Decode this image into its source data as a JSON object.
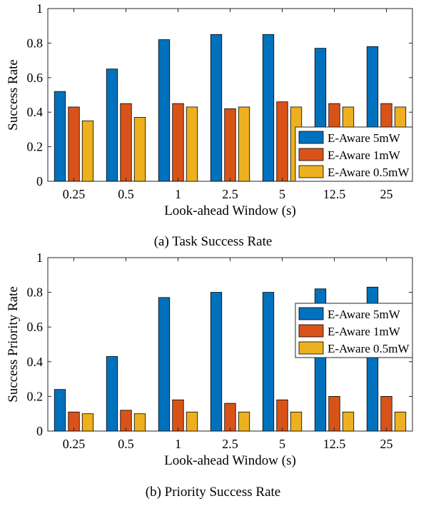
{
  "chart_data": [
    {
      "type": "bar",
      "caption": "(a) Task Success Rate",
      "xlabel": "Look-ahead Window (s)",
      "ylabel": "Success Rate",
      "categories": [
        "0.25",
        "0.5",
        "1",
        "2.5",
        "5",
        "12.5",
        "25"
      ],
      "yticks": [
        "0",
        "0.2",
        "0.4",
        "0.6",
        "0.8",
        "1"
      ],
      "ylim": [
        0,
        1
      ],
      "grid": false,
      "legend_position": "bottom-right",
      "series": [
        {
          "name": "E-Aware 5mW",
          "color": "#0072BD",
          "values": [
            0.52,
            0.65,
            0.82,
            0.85,
            0.85,
            0.77,
            0.78
          ]
        },
        {
          "name": "E-Aware 1mW",
          "color": "#D95319",
          "values": [
            0.43,
            0.45,
            0.45,
            0.42,
            0.46,
            0.45,
            0.45
          ]
        },
        {
          "name": "E-Aware 0.5mW",
          "color": "#EDB120",
          "values": [
            0.35,
            0.37,
            0.43,
            0.43,
            0.43,
            0.43,
            0.43
          ]
        }
      ]
    },
    {
      "type": "bar",
      "caption": "(b) Priority Success Rate",
      "xlabel": "Look-ahead Window (s)",
      "ylabel": "Success Priority Rate",
      "categories": [
        "0.25",
        "0.5",
        "1",
        "2.5",
        "5",
        "12.5",
        "25"
      ],
      "yticks": [
        "0",
        "0.2",
        "0.4",
        "0.6",
        "0.8",
        "1"
      ],
      "ylim": [
        0,
        1
      ],
      "grid": false,
      "legend_position": "top-right",
      "series": [
        {
          "name": "E-Aware 5mW",
          "color": "#0072BD",
          "values": [
            0.24,
            0.43,
            0.77,
            0.8,
            0.8,
            0.82,
            0.83
          ]
        },
        {
          "name": "E-Aware 1mW",
          "color": "#D95319",
          "values": [
            0.11,
            0.12,
            0.18,
            0.16,
            0.18,
            0.2,
            0.2
          ]
        },
        {
          "name": "E-Aware 0.5mW",
          "color": "#EDB120",
          "values": [
            0.1,
            0.1,
            0.11,
            0.11,
            0.11,
            0.11,
            0.11
          ]
        }
      ]
    }
  ]
}
